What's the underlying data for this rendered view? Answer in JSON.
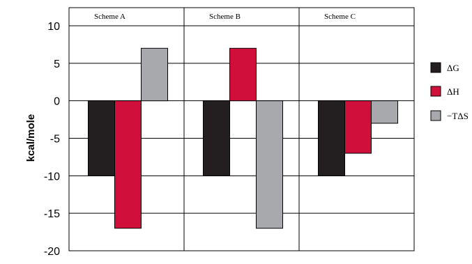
{
  "chart_data": {
    "type": "bar",
    "title": "",
    "xlabel": "",
    "ylabel": "kcal/mole",
    "ylim": [
      -20,
      10
    ],
    "yticks": [
      10,
      5,
      0,
      -5,
      -10,
      -15,
      -20
    ],
    "categories": [
      "Scheme A",
      "Scheme B",
      "Scheme C"
    ],
    "series": [
      {
        "name": "ΔG",
        "color": "#231f20",
        "values": [
          -10,
          -10,
          -10
        ]
      },
      {
        "name": "ΔH",
        "color": "#d0103a",
        "values": [
          -17,
          7,
          -7
        ]
      },
      {
        "name": "−TΔS",
        "color": "#a7a9ac",
        "values": [
          7,
          -17,
          -3
        ]
      }
    ],
    "grid": true,
    "legend_position": "right"
  }
}
